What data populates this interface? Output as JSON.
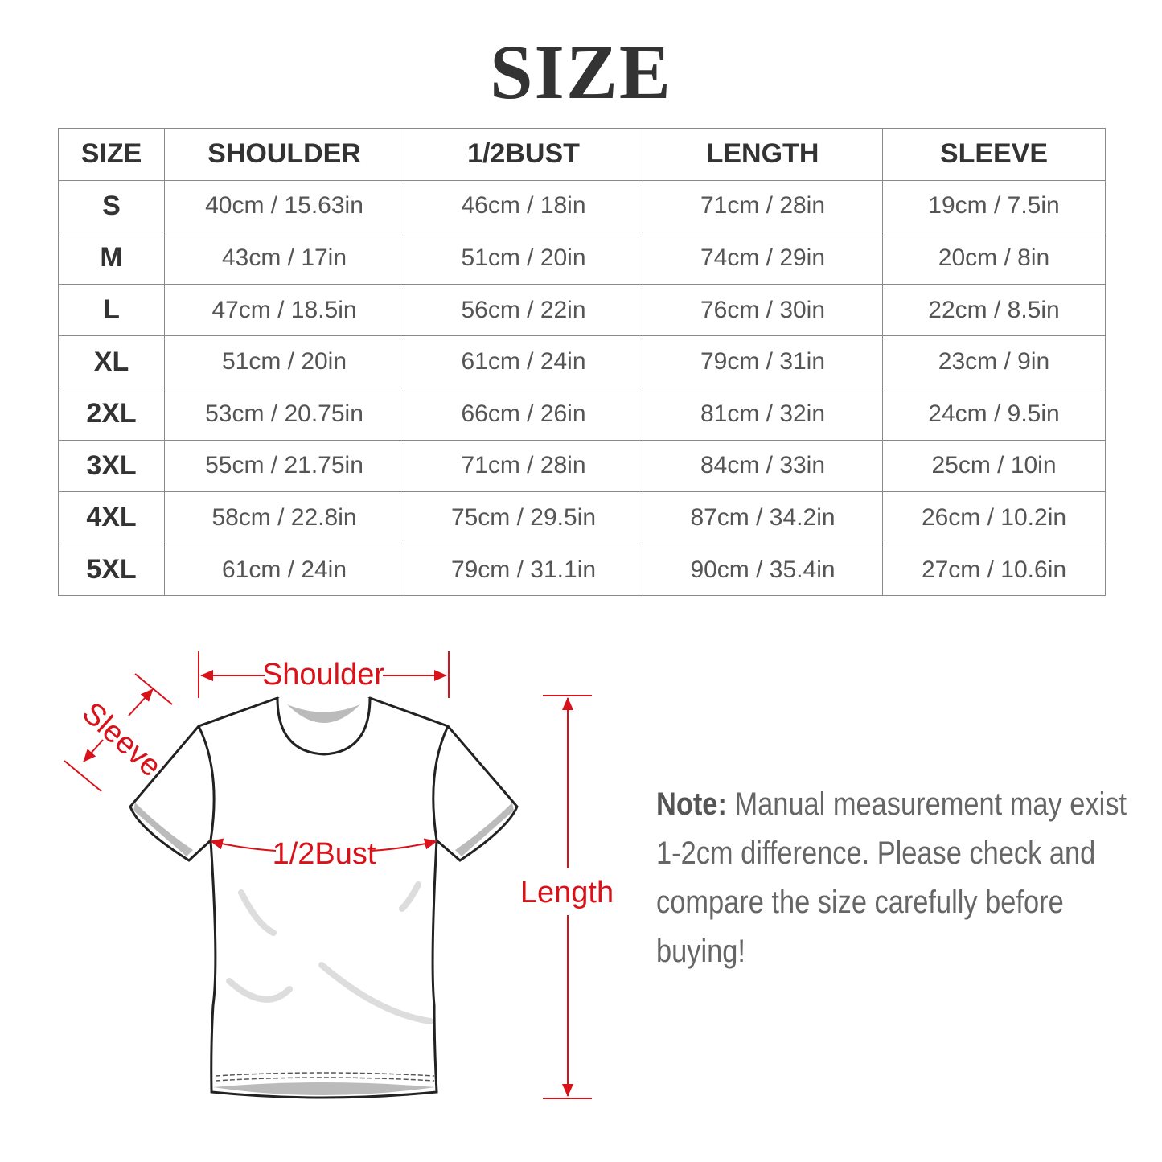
{
  "title": "SIZE",
  "table": {
    "headers": [
      "SIZE",
      "SHOULDER",
      "1/2BUST",
      "LENGTH",
      "SLEEVE"
    ],
    "rows": [
      [
        "S",
        "40cm / 15.63in",
        "46cm / 18in",
        "71cm / 28in",
        "19cm / 7.5in"
      ],
      [
        "M",
        "43cm / 17in",
        "51cm / 20in",
        "74cm / 29in",
        "20cm / 8in"
      ],
      [
        "L",
        "47cm / 18.5in",
        "56cm / 22in",
        "76cm / 30in",
        "22cm / 8.5in"
      ],
      [
        "XL",
        "51cm / 20in",
        "61cm / 24in",
        "79cm / 31in",
        "23cm / 9in"
      ],
      [
        "2XL",
        "53cm / 20.75in",
        "66cm / 26in",
        "81cm / 32in",
        "24cm / 9.5in"
      ],
      [
        "3XL",
        "55cm / 21.75in",
        "71cm / 28in",
        "84cm / 33in",
        "25cm / 10in"
      ],
      [
        "4XL",
        "58cm / 22.8in",
        "75cm / 29.5in",
        "87cm / 34.2in",
        "26cm / 10.2in"
      ],
      [
        "5XL",
        "61cm / 24in",
        "79cm / 31.1in",
        "90cm / 35.4in",
        "27cm / 10.6in"
      ]
    ]
  },
  "diagram": {
    "shoulder_label": "Shoulder",
    "sleeve_label": "Sleeve",
    "bust_label": "1/2Bust",
    "length_label": "Length",
    "accent_color": "#d9121a"
  },
  "note": {
    "label": "Note:",
    "text": "Manual measurement may exist 1-2cm difference. Please check and compare the size carefully before buying!"
  }
}
